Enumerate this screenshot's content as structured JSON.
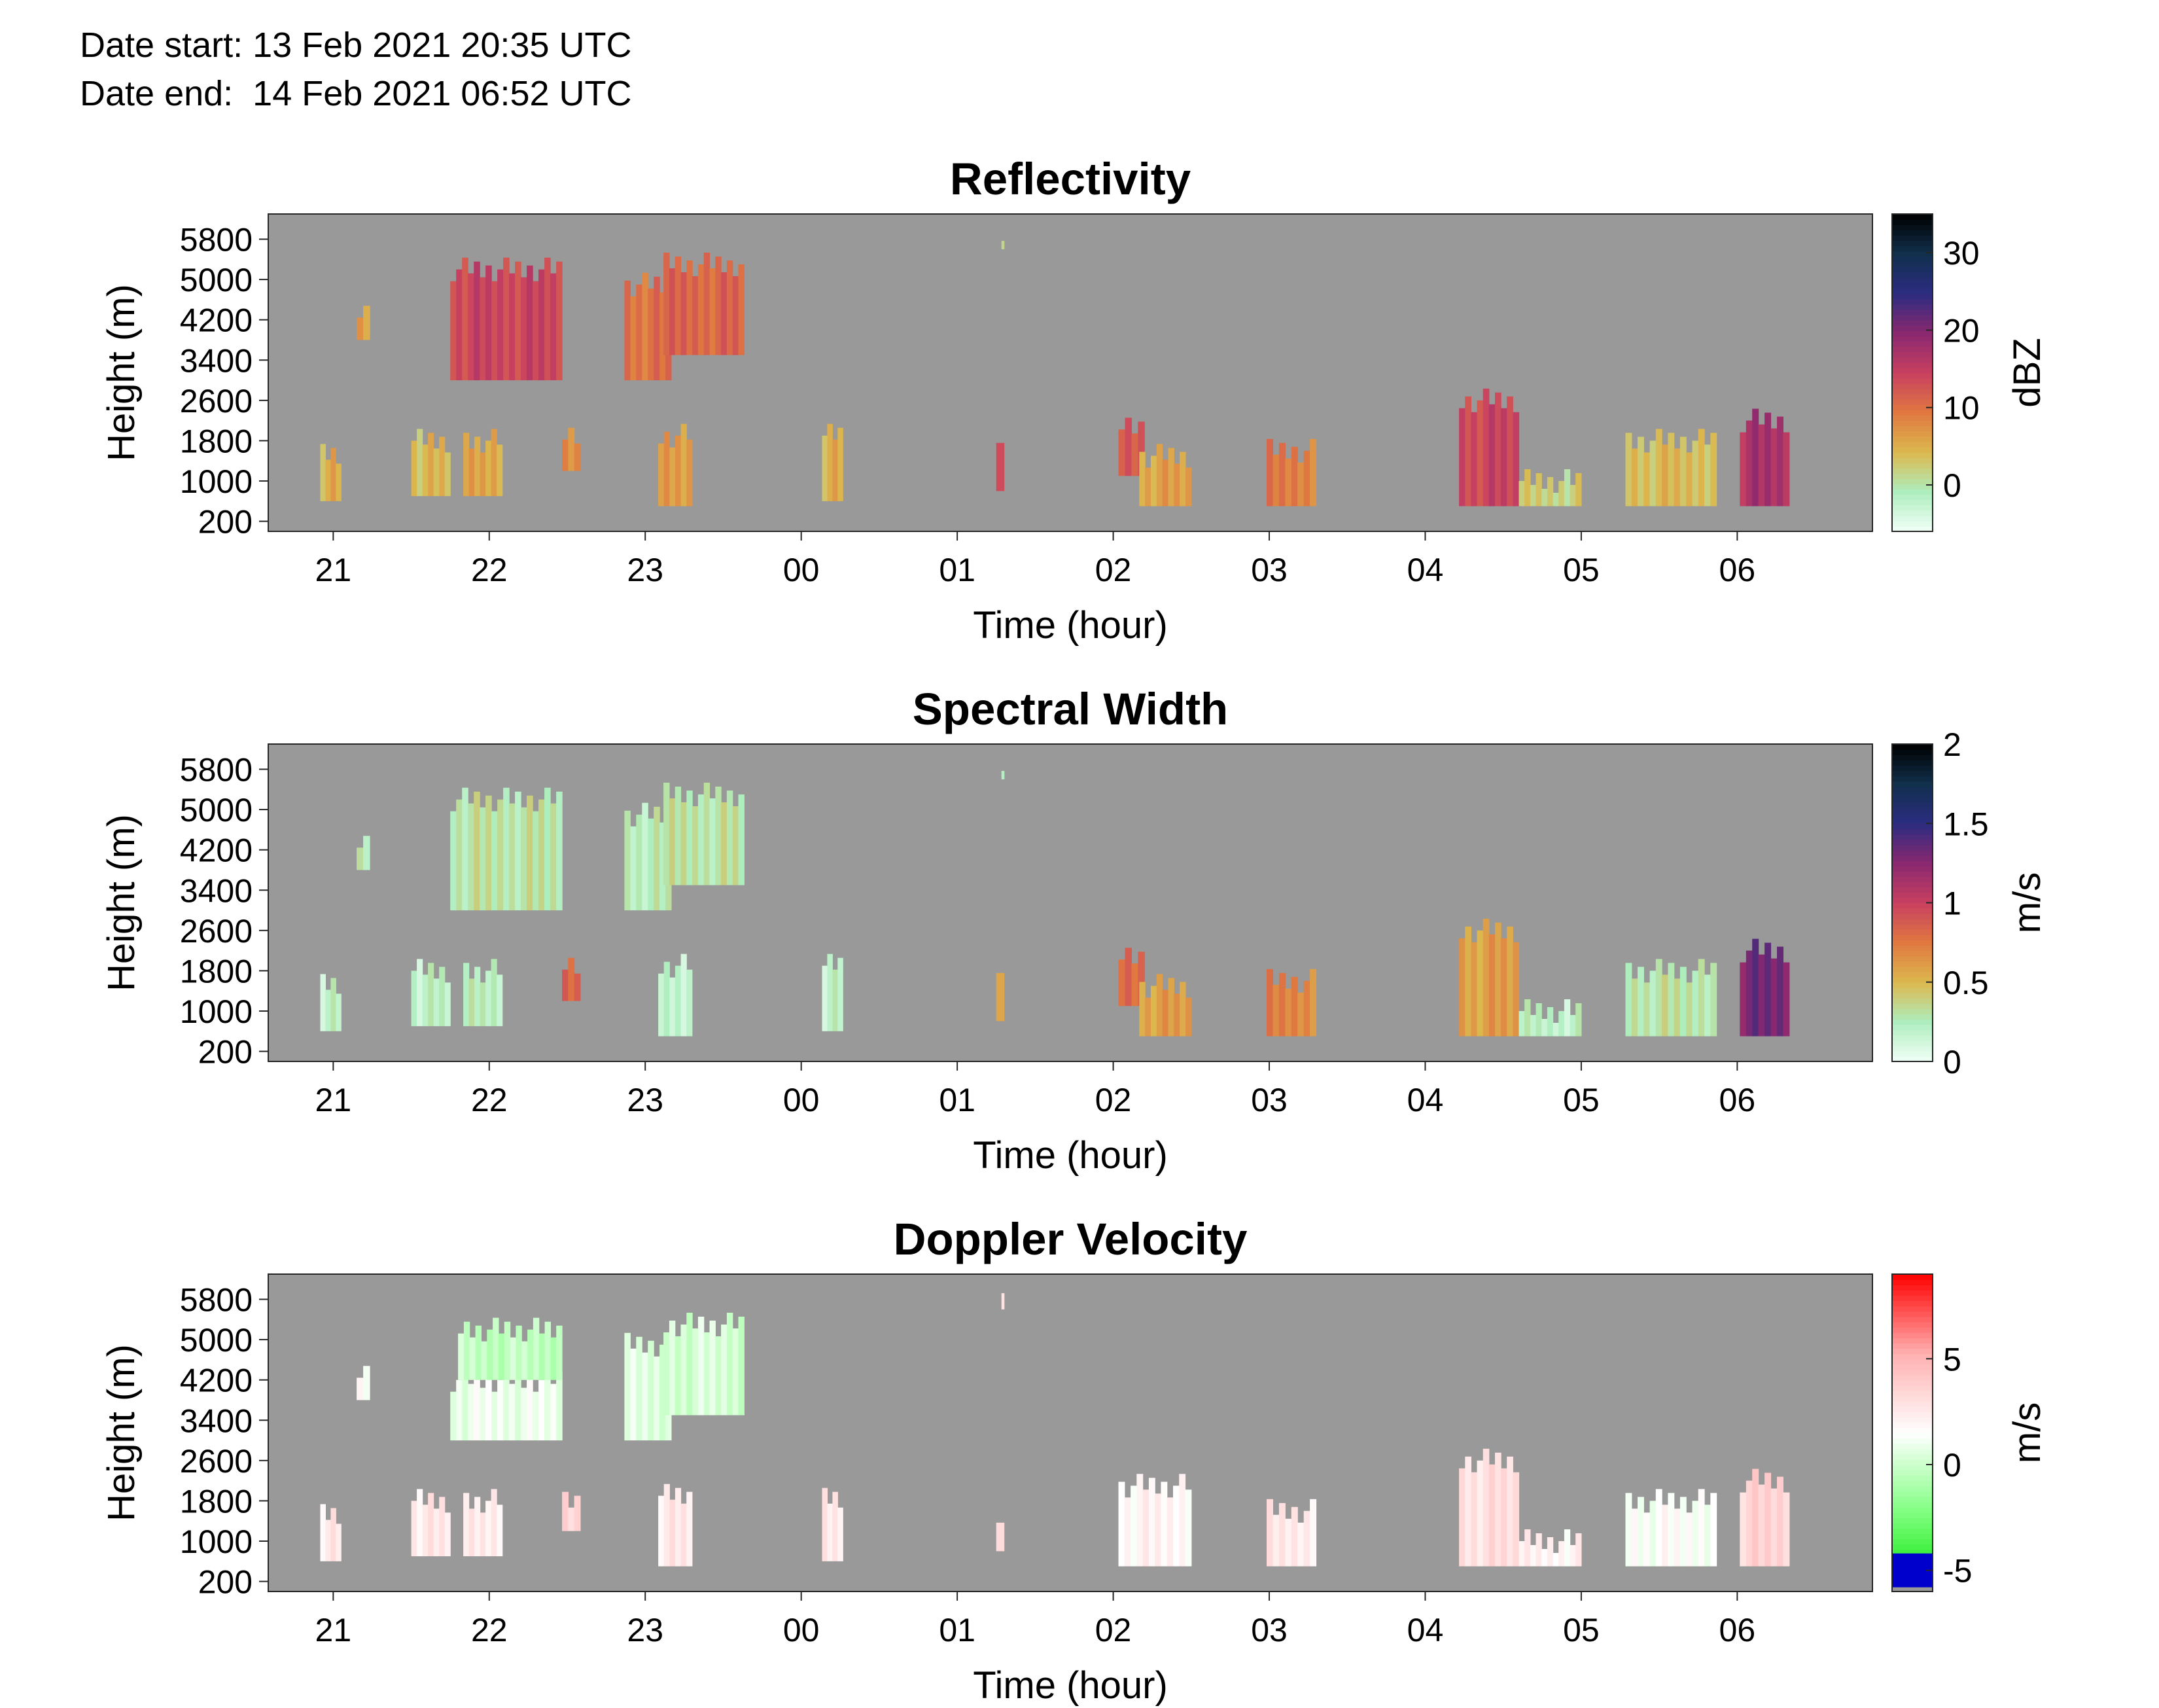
{
  "header": {
    "date_start": "Date start: 13 Feb 2021 20:35 UTC",
    "date_end": "Date end:  14 Feb 2021 06:52 UTC"
  },
  "colors": {
    "background_no_echo": "#999999",
    "axis": "#262626"
  },
  "chart_data": [
    {
      "type": "heatmap",
      "title": "Reflectivity",
      "xlabel": "Time (hour)",
      "ylabel": "Height (m)",
      "x_ticks": [
        "21",
        "22",
        "23",
        "00",
        "01",
        "02",
        "03",
        "04",
        "05",
        "06"
      ],
      "y_ticks": [
        200,
        1000,
        1800,
        2600,
        3400,
        4200,
        5000,
        5800
      ],
      "colorbar": {
        "label": "dBZ",
        "ticks": [
          0,
          10,
          20,
          30
        ],
        "range": [
          -6,
          35
        ],
        "colors": [
          "#f2fff8",
          "#aeeebe",
          "#dcb84e",
          "#e07840",
          "#c84060",
          "#8a2870",
          "#2c2c80",
          "#10304c",
          "#000000"
        ]
      },
      "cells": [
        {
          "start": "20:55",
          "end": "21:03",
          "bottom": 600,
          "top": 1500,
          "value": 5
        },
        {
          "start": "21:09",
          "end": "21:14",
          "bottom": 3800,
          "top": 4400,
          "value": 6
        },
        {
          "start": "21:30",
          "end": "21:45",
          "bottom": 700,
          "top": 1800,
          "value": 4
        },
        {
          "start": "21:50",
          "end": "22:05",
          "bottom": 700,
          "top": 1800,
          "value": 6
        },
        {
          "start": "21:45",
          "end": "22:28",
          "bottom": 3000,
          "top": 5200,
          "value": 14
        },
        {
          "start": "22:28",
          "end": "22:35",
          "bottom": 1200,
          "top": 1900,
          "value": 7
        },
        {
          "start": "22:52",
          "end": "23:10",
          "bottom": 3000,
          "top": 4900,
          "value": 10
        },
        {
          "start": "23:07",
          "end": "23:38",
          "bottom": 3500,
          "top": 5300,
          "value": 11
        },
        {
          "start": "23:05",
          "end": "23:18",
          "bottom": 500,
          "top": 1900,
          "value": 7
        },
        {
          "start": "00:08",
          "end": "00:16",
          "bottom": 600,
          "top": 1900,
          "value": 5
        },
        {
          "start": "01:15",
          "end": "01:18",
          "bottom": 800,
          "top": 1600,
          "value": 12
        },
        {
          "start": "01:17",
          "end": "01:18",
          "bottom": 5600,
          "top": 6000,
          "value": 1
        },
        {
          "start": "02:02",
          "end": "02:12",
          "bottom": 1100,
          "top": 2100,
          "value": 12
        },
        {
          "start": "02:10",
          "end": "02:30",
          "bottom": 500,
          "top": 1500,
          "value": 6
        },
        {
          "start": "02:59",
          "end": "03:18",
          "bottom": 500,
          "top": 1600,
          "value": 9
        },
        {
          "start": "04:13",
          "end": "04:36",
          "bottom": 500,
          "top": 2600,
          "value": 14
        },
        {
          "start": "04:36",
          "end": "05:00",
          "bottom": 500,
          "top": 1000,
          "value": 2
        },
        {
          "start": "05:17",
          "end": "05:52",
          "bottom": 500,
          "top": 1800,
          "value": 4
        },
        {
          "start": "06:01",
          "end": "06:20",
          "bottom": 500,
          "top": 2200,
          "value": 17
        }
      ]
    },
    {
      "type": "heatmap",
      "title": "Spectral Width",
      "xlabel": "Time (hour)",
      "ylabel": "Height (m)",
      "x_ticks": [
        "21",
        "22",
        "23",
        "00",
        "01",
        "02",
        "03",
        "04",
        "05",
        "06"
      ],
      "y_ticks": [
        200,
        1000,
        1800,
        2600,
        3400,
        4200,
        5000,
        5800
      ],
      "colorbar": {
        "label": "m/s",
        "ticks": [
          0,
          0.5,
          1,
          1.5,
          2
        ],
        "range": [
          0,
          2
        ],
        "colors": [
          "#f2fff8",
          "#aeeebe",
          "#dcb84e",
          "#e07840",
          "#c84060",
          "#8a2870",
          "#2c2c80",
          "#10304c",
          "#000000"
        ]
      },
      "cells": [
        {
          "start": "20:55",
          "end": "21:03",
          "bottom": 600,
          "top": 1500,
          "value": 0.2
        },
        {
          "start": "21:09",
          "end": "21:14",
          "bottom": 3800,
          "top": 4400,
          "value": 0.25
        },
        {
          "start": "21:30",
          "end": "21:45",
          "bottom": 700,
          "top": 1800,
          "value": 0.2
        },
        {
          "start": "21:50",
          "end": "22:05",
          "bottom": 700,
          "top": 1800,
          "value": 0.25
        },
        {
          "start": "21:45",
          "end": "22:28",
          "bottom": 3000,
          "top": 5200,
          "value": 0.3
        },
        {
          "start": "22:28",
          "end": "22:35",
          "bottom": 1200,
          "top": 1900,
          "value": 0.8
        },
        {
          "start": "22:52",
          "end": "23:10",
          "bottom": 3000,
          "top": 4900,
          "value": 0.25
        },
        {
          "start": "23:07",
          "end": "23:38",
          "bottom": 3500,
          "top": 5300,
          "value": 0.3
        },
        {
          "start": "23:05",
          "end": "23:18",
          "bottom": 500,
          "top": 1900,
          "value": 0.2
        },
        {
          "start": "00:08",
          "end": "00:16",
          "bottom": 600,
          "top": 1900,
          "value": 0.2
        },
        {
          "start": "01:15",
          "end": "01:18",
          "bottom": 800,
          "top": 1600,
          "value": 0.5
        },
        {
          "start": "01:17",
          "end": "01:18",
          "bottom": 5600,
          "top": 6000,
          "value": 0.2
        },
        {
          "start": "02:02",
          "end": "02:12",
          "bottom": 1100,
          "top": 2100,
          "value": 0.8
        },
        {
          "start": "02:10",
          "end": "02:30",
          "bottom": 500,
          "top": 1500,
          "value": 0.6
        },
        {
          "start": "02:59",
          "end": "03:18",
          "bottom": 500,
          "top": 1600,
          "value": 0.7
        },
        {
          "start": "04:13",
          "end": "04:36",
          "bottom": 500,
          "top": 2600,
          "value": 0.6
        },
        {
          "start": "04:36",
          "end": "05:00",
          "bottom": 500,
          "top": 1000,
          "value": 0.2
        },
        {
          "start": "05:17",
          "end": "05:52",
          "bottom": 500,
          "top": 1800,
          "value": 0.3
        },
        {
          "start": "06:01",
          "end": "06:20",
          "bottom": 500,
          "top": 2200,
          "value": 1.3
        }
      ]
    },
    {
      "type": "heatmap",
      "title": "Doppler Velocity",
      "xlabel": "Time (hour)",
      "ylabel": "Height (m)",
      "x_ticks": [
        "21",
        "22",
        "23",
        "00",
        "01",
        "02",
        "03",
        "04",
        "05",
        "06"
      ],
      "y_ticks": [
        200,
        1000,
        1800,
        2600,
        3400,
        4200,
        5000,
        5800
      ],
      "colorbar": {
        "label": "m/s",
        "ticks": [
          -5,
          0,
          5
        ],
        "range": [
          -6,
          9
        ],
        "colors": [
          "#00e000",
          "#80ff80",
          "#ffffff",
          "#ffb0b0",
          "#ff0000"
        ]
      },
      "cells": [
        {
          "start": "20:55",
          "end": "21:03",
          "bottom": 600,
          "top": 1500,
          "value": 2.5
        },
        {
          "start": "21:09",
          "end": "21:14",
          "bottom": 3800,
          "top": 4400,
          "value": 1.5
        },
        {
          "start": "21:30",
          "end": "21:45",
          "bottom": 700,
          "top": 1800,
          "value": 2.5
        },
        {
          "start": "21:50",
          "end": "22:05",
          "bottom": 700,
          "top": 1800,
          "value": 2.5
        },
        {
          "start": "21:45",
          "end": "22:28",
          "bottom": 3000,
          "top": 4200,
          "value": 1.0
        },
        {
          "start": "21:48",
          "end": "22:28",
          "bottom": 4200,
          "top": 5200,
          "value": -0.3
        },
        {
          "start": "22:28",
          "end": "22:35",
          "bottom": 1200,
          "top": 1900,
          "value": 3.5
        },
        {
          "start": "22:52",
          "end": "23:10",
          "bottom": 3000,
          "top": 4900,
          "value": 0.5
        },
        {
          "start": "23:07",
          "end": "23:38",
          "bottom": 3500,
          "top": 5300,
          "value": 0.3
        },
        {
          "start": "23:05",
          "end": "23:18",
          "bottom": 500,
          "top": 1900,
          "value": 2.5
        },
        {
          "start": "00:08",
          "end": "00:16",
          "bottom": 600,
          "top": 1900,
          "value": 2.5
        },
        {
          "start": "01:15",
          "end": "01:18",
          "bottom": 800,
          "top": 1600,
          "value": 3.0
        },
        {
          "start": "01:17",
          "end": "01:18",
          "bottom": 5600,
          "top": 6000,
          "value": 3.0
        },
        {
          "start": "02:02",
          "end": "02:30",
          "bottom": 500,
          "top": 2100,
          "value": 2.0
        },
        {
          "start": "02:59",
          "end": "03:18",
          "bottom": 500,
          "top": 1600,
          "value": 2.5
        },
        {
          "start": "04:13",
          "end": "04:36",
          "bottom": 500,
          "top": 2600,
          "value": 3.0
        },
        {
          "start": "04:36",
          "end": "05:00",
          "bottom": 500,
          "top": 1000,
          "value": 2.0
        },
        {
          "start": "05:17",
          "end": "05:52",
          "bottom": 500,
          "top": 1800,
          "value": 1.5
        },
        {
          "start": "06:01",
          "end": "06:20",
          "bottom": 500,
          "top": 2200,
          "value": 3.5
        }
      ]
    }
  ]
}
